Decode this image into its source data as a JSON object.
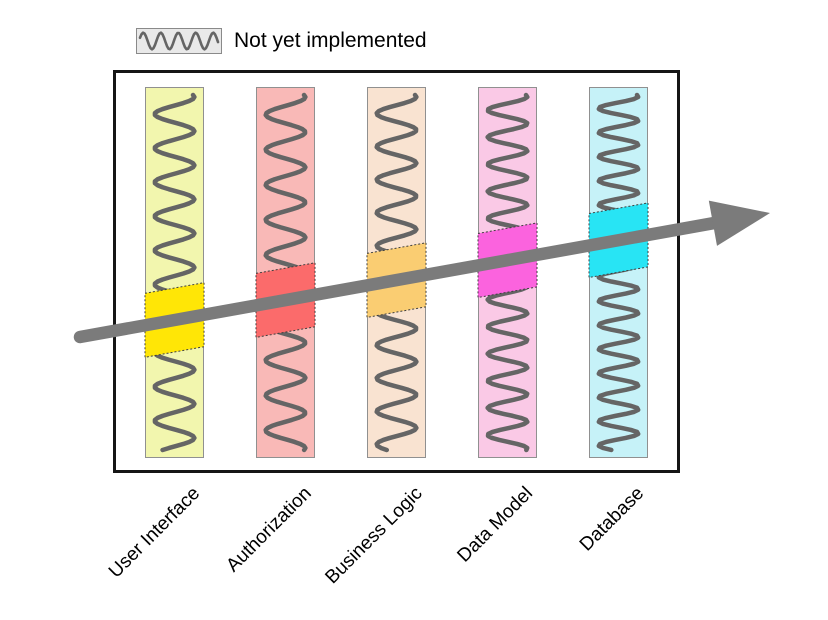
{
  "legend": {
    "label": "Not yet implemented",
    "swatch_icon": "squiggle-pattern"
  },
  "layers": [
    {
      "label": "User Interface",
      "fill": "#f2f6ae",
      "highlight": "#ffe606"
    },
    {
      "label": "Authorization",
      "fill": "#f9b9b7",
      "highlight": "#fb6b6b"
    },
    {
      "label": "Business Logic",
      "fill": "#f9e3d1",
      "highlight": "#facd72"
    },
    {
      "label": "Data Model",
      "fill": "#fac9e6",
      "highlight": "#fb63de"
    },
    {
      "label": "Database",
      "fill": "#c6f2f8",
      "highlight": "#28e4f4"
    }
  ],
  "colors": {
    "arrow": "#7b7b7b",
    "squiggle": "#656565",
    "box_border": "#151515",
    "bar_border": "#909090",
    "highlight_border": "#3f3f3f",
    "legend_bg": "#e9e9e9",
    "legend_border": "#8a8a8a",
    "text": "#000000",
    "background": "#ffffff"
  }
}
